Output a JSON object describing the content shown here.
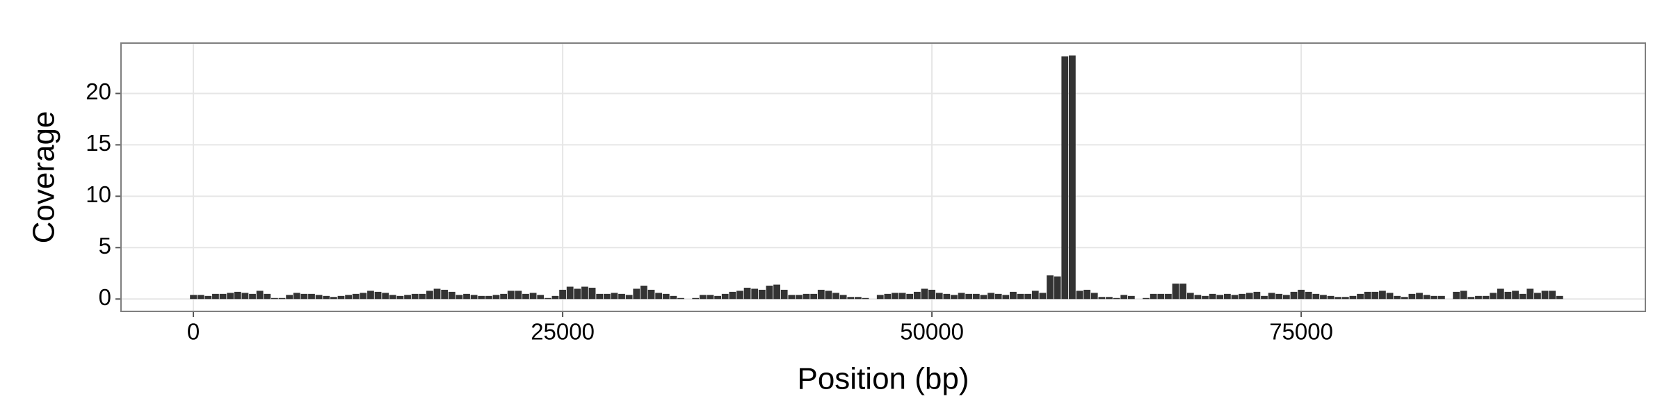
{
  "chart_data": {
    "type": "bar",
    "xlabel": "Position (bp)",
    "ylabel": "Coverage",
    "color": "#333333",
    "grid": true,
    "xlim": [
      -4900,
      98300
    ],
    "xticks": [
      0,
      25000,
      50000,
      75000
    ],
    "ylim": [
      -1.2,
      24.9
    ],
    "yticks": [
      0,
      5,
      10,
      15,
      20
    ],
    "x": [
      0,
      500,
      1000,
      1500,
      2000,
      2500,
      3000,
      3500,
      4000,
      4500,
      5000,
      5500,
      6000,
      6500,
      7000,
      7500,
      8000,
      8500,
      9000,
      9500,
      10000,
      10500,
      11000,
      11500,
      12000,
      12500,
      13000,
      13500,
      14000,
      14500,
      15000,
      15500,
      16000,
      16500,
      17000,
      17500,
      18000,
      18500,
      19000,
      19500,
      20000,
      20500,
      21000,
      21500,
      22000,
      22500,
      23000,
      23500,
      24000,
      24500,
      25000,
      25500,
      26000,
      26500,
      27000,
      27500,
      28000,
      28500,
      29000,
      29500,
      30000,
      30500,
      31000,
      31500,
      32000,
      32500,
      33000,
      33500,
      34000,
      34500,
      35000,
      35500,
      36000,
      36500,
      37000,
      37500,
      38000,
      38500,
      39000,
      39500,
      40000,
      40500,
      41000,
      41500,
      42000,
      42500,
      43000,
      43500,
      44000,
      44500,
      45000,
      45500,
      46000,
      46500,
      47000,
      47500,
      48000,
      48500,
      49000,
      49500,
      50000,
      50500,
      51000,
      51500,
      52000,
      52500,
      53000,
      53500,
      54000,
      54500,
      55000,
      55500,
      56000,
      56500,
      57000,
      57500,
      58000,
      58500,
      59000,
      59500,
      60000,
      60500,
      61000,
      61500,
      62000,
      62500,
      63000,
      63500,
      64000,
      64500,
      65000,
      65500,
      66000,
      66500,
      67000,
      67500,
      68000,
      68500,
      69000,
      69500,
      70000,
      70500,
      71000,
      71500,
      72000,
      72500,
      73000,
      73500,
      74000,
      74500,
      75000,
      75500,
      76000,
      76500,
      77000,
      77500,
      78000,
      78500,
      79000,
      79500,
      80000,
      80500,
      81000,
      81500,
      82000,
      82500,
      83000,
      83500,
      84000,
      84500,
      85000,
      85500,
      86000,
      86500,
      87000,
      87500,
      88000,
      88500,
      89000,
      89500,
      90000,
      90500,
      91000,
      91500,
      92000,
      92500
    ],
    "values": [
      0.4,
      0.4,
      0.3,
      0.5,
      0.5,
      0.6,
      0.7,
      0.6,
      0.5,
      0.8,
      0.5,
      0.1,
      0.1,
      0.4,
      0.6,
      0.5,
      0.5,
      0.4,
      0.3,
      0.2,
      0.3,
      0.4,
      0.5,
      0.6,
      0.8,
      0.7,
      0.6,
      0.4,
      0.3,
      0.4,
      0.5,
      0.5,
      0.8,
      1.0,
      0.9,
      0.7,
      0.4,
      0.5,
      0.4,
      0.3,
      0.3,
      0.4,
      0.5,
      0.8,
      0.8,
      0.5,
      0.6,
      0.4,
      0.1,
      0.3,
      0.9,
      1.2,
      1.0,
      1.2,
      1.1,
      0.5,
      0.5,
      0.6,
      0.5,
      0.4,
      1.0,
      1.3,
      0.9,
      0.6,
      0.5,
      0.3,
      0.1,
      0,
      0.1,
      0.4,
      0.4,
      0.3,
      0.5,
      0.7,
      0.8,
      1.1,
      1.0,
      0.9,
      1.3,
      1.4,
      0.9,
      0.4,
      0.4,
      0.5,
      0.5,
      0.9,
      0.8,
      0.6,
      0.4,
      0.2,
      0.2,
      0.1,
      0,
      0.4,
      0.5,
      0.6,
      0.6,
      0.5,
      0.7,
      1.0,
      0.9,
      0.6,
      0.5,
      0.4,
      0.6,
      0.5,
      0.5,
      0.4,
      0.6,
      0.5,
      0.4,
      0.7,
      0.5,
      0.5,
      0.8,
      0.6,
      2.3,
      2.2,
      23.6,
      23.7,
      0.8,
      0.9,
      0.6,
      0.2,
      0.2,
      0.1,
      0.4,
      0.3,
      0,
      0.1,
      0.5,
      0.5,
      0.5,
      1.5,
      1.5,
      0.6,
      0.4,
      0.3,
      0.5,
      0.4,
      0.5,
      0.4,
      0.5,
      0.6,
      0.7,
      0.3,
      0.6,
      0.5,
      0.4,
      0.7,
      0.9,
      0.7,
      0.5,
      0.4,
      0.3,
      0.2,
      0.2,
      0.3,
      0.5,
      0.7,
      0.7,
      0.8,
      0.6,
      0.3,
      0.2,
      0.5,
      0.6,
      0.4,
      0.3,
      0.3,
      0,
      0.7,
      0.8,
      0.2,
      0.3,
      0.3,
      0.6,
      1.0,
      0.7,
      0.8,
      0.5,
      1.0,
      0.6,
      0.8,
      0.8,
      0.3
    ]
  }
}
